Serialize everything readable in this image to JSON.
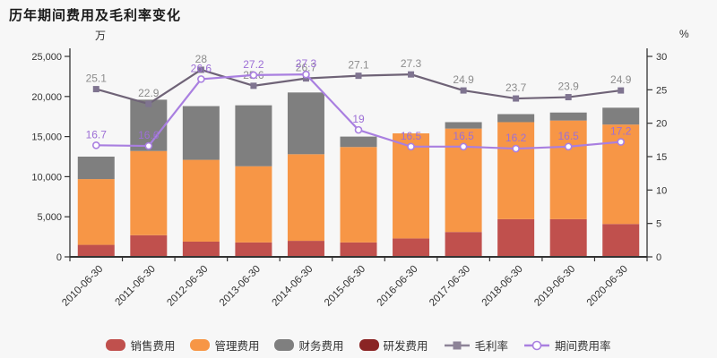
{
  "title": "历年期间费用及毛利率变化",
  "chart_data": {
    "type": "bar+line combo (stacked bars, dual axis)",
    "title": "历年期间费用及毛利率变化",
    "categories": [
      "2010-06-30",
      "2011-06-30",
      "2012-06-30",
      "2013-06-30",
      "2014-06-30",
      "2015-06-30",
      "2016-06-30",
      "2017-06-30",
      "2018-06-30",
      "2019-06-30",
      "2020-06-30"
    ],
    "left_axis": {
      "unit": "万",
      "min": 0,
      "max": 25000,
      "ticks": [
        0,
        5000,
        10000,
        15000,
        20000,
        25000
      ]
    },
    "right_axis": {
      "unit": "%",
      "min": 0,
      "max": 30,
      "ticks": [
        0,
        5,
        10,
        15,
        20,
        25,
        30
      ]
    },
    "grid": false,
    "legend_position": "bottom",
    "bar_series": [
      {
        "name": "销售费用",
        "color": "#c0504d",
        "values": [
          1500,
          2700,
          1900,
          1800,
          2000,
          1800,
          2300,
          3100,
          4700,
          4700,
          4100
        ]
      },
      {
        "name": "管理费用",
        "color": "#f79646",
        "values": [
          8200,
          10500,
          10200,
          9500,
          10800,
          11900,
          13100,
          12900,
          12100,
          12300,
          12400
        ]
      },
      {
        "name": "财务费用",
        "color": "#7f7f7f",
        "values": [
          2800,
          6400,
          6700,
          7600,
          7700,
          1300,
          0,
          800,
          1000,
          1000,
          2100
        ]
      },
      {
        "name": "研发费用",
        "color": "#8a2424",
        "values": [
          0,
          0,
          0,
          0,
          0,
          0,
          0,
          0,
          0,
          0,
          0
        ]
      }
    ],
    "line_series": [
      {
        "name": "毛利率",
        "color": "#6f6377",
        "marker": "square",
        "marker_color": "#7f7490",
        "label_color": "#8c8c8c",
        "values": [
          25.1,
          22.9,
          28,
          25.6,
          26.7,
          27.1,
          27.3,
          24.9,
          23.7,
          23.9,
          24.9
        ]
      },
      {
        "name": "期间费用率",
        "color": "#a97fe0",
        "marker": "circle-hollow",
        "marker_color": "#a97fe0",
        "label_color": "#9d6fd6",
        "values": [
          16.7,
          16.6,
          26.6,
          27.2,
          27.3,
          19,
          16.5,
          16.5,
          16.2,
          16.5,
          17.2
        ]
      }
    ]
  },
  "colors": {
    "background": "#f7f7f7",
    "axis_line": "#333333",
    "tick_label": "#333333",
    "title": "#1a1a1a"
  }
}
